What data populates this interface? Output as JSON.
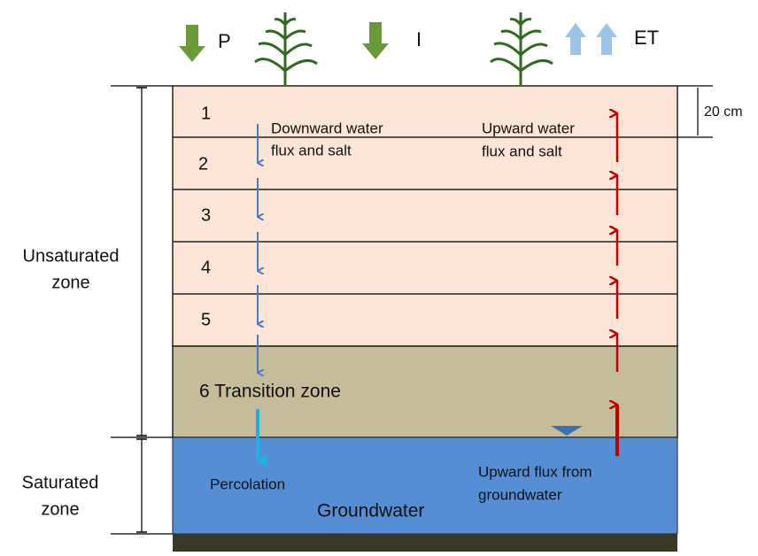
{
  "inputs": {
    "precipitation": "P",
    "irrigation": "I",
    "evapotranspiration": "ET"
  },
  "layers": [
    "1",
    "2",
    "3",
    "4",
    "5"
  ],
  "transition_zone": "6 Transition zone",
  "groundwater": "Groundwater",
  "layer_thickness": "20 cm",
  "zones": {
    "unsaturated": [
      "Unsaturated",
      "zone"
    ],
    "saturated": [
      "Saturated",
      "zone"
    ]
  },
  "annotations": {
    "downward": [
      "Downward water",
      "flux and salt"
    ],
    "upward": [
      "Upward water",
      "flux and salt"
    ],
    "percolation": "Percolation",
    "upward_groundwater": [
      "Upward flux from",
      "groundwater"
    ]
  }
}
